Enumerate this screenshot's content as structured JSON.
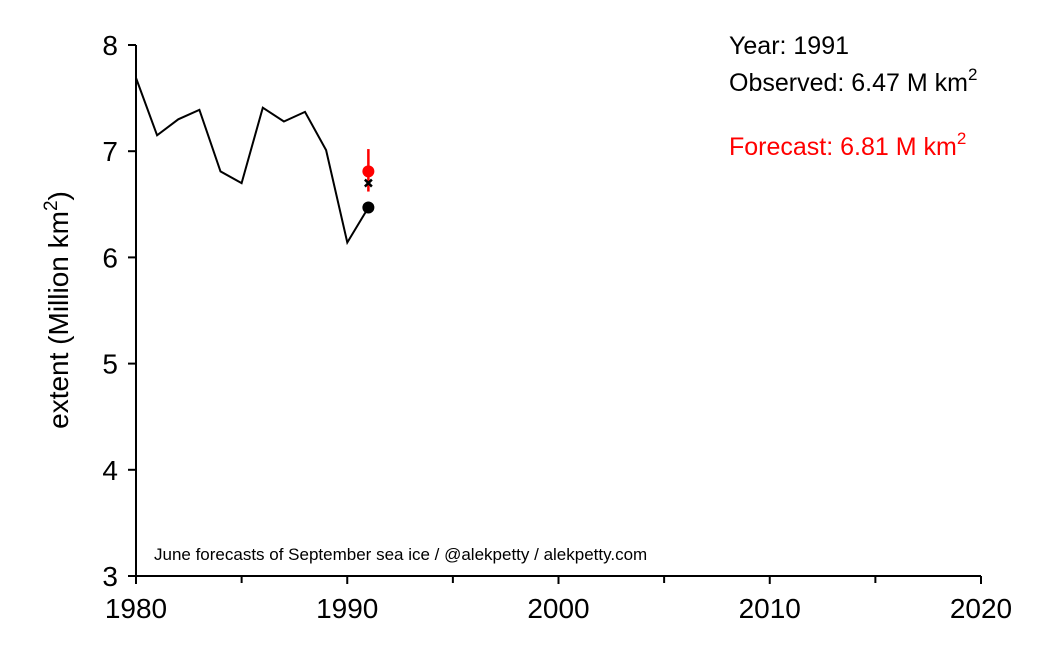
{
  "chart_data": {
    "type": "line",
    "ylabel_main": "extent (Million km",
    "ylabel_sup": "2",
    "ylabel_close": ")",
    "xlim": [
      1980,
      2020
    ],
    "ylim": [
      3,
      8
    ],
    "x_ticks": [
      1980,
      1990,
      2000,
      2010,
      2020
    ],
    "x_minor_ticks": [
      1985,
      1995,
      2005,
      2015
    ],
    "y_ticks": [
      3,
      4,
      5,
      6,
      7,
      8
    ],
    "grid": false,
    "observed_series": {
      "x": [
        1980,
        1981,
        1982,
        1983,
        1984,
        1985,
        1986,
        1987,
        1988,
        1989,
        1990,
        1991
      ],
      "y": [
        7.69,
        7.15,
        7.3,
        7.39,
        6.81,
        6.7,
        7.41,
        7.28,
        7.37,
        7.01,
        6.14,
        6.47
      ],
      "color": "#000000"
    },
    "observed_point": {
      "x": 1991,
      "y": 6.47,
      "color": "#000000"
    },
    "trend_point": {
      "x": 1991,
      "y": 6.7,
      "color": "#000000",
      "marker": "x"
    },
    "forecast_point": {
      "x": 1991,
      "y": 6.81,
      "err_low": 6.62,
      "err_high": 7.02,
      "color": "#ff0000"
    },
    "annotations": {
      "year_text": "Year: 1991",
      "observed_text": "Observed: 6.47 M km",
      "observed_sup": "2",
      "forecast_text": "Forecast: 6.81 M km",
      "forecast_sup": "2",
      "credit_text": "June forecasts of September sea ice / @alekpetty / alekpetty.com"
    }
  }
}
